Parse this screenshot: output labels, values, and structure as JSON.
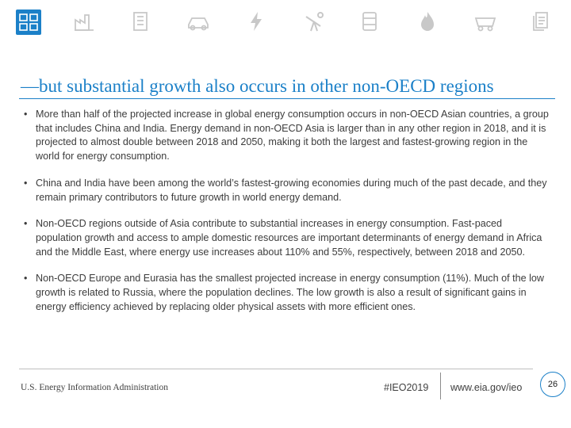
{
  "nav": {
    "icons": [
      "overview-icon",
      "industrial-building-icon",
      "commercial-building-icon",
      "transportation-car-icon",
      "electricity-bolt-icon",
      "petroleum-pump-icon",
      "oil-barrel-icon",
      "natural-gas-flame-icon",
      "coal-cart-icon",
      "documents-icon"
    ]
  },
  "slide": {
    "title": "—but substantial growth also occurs in other non-OECD regions",
    "bullet_marker": "•",
    "bullets": [
      "More than half of the projected increase in global energy consumption occurs in non-OECD Asian countries, a group that includes China and India. Energy demand in non-OECD Asia is larger than in any other region in 2018, and it is projected to almost double between 2018 and 2050, making it both the largest and fastest-growing region in the world for energy consumption.",
      "China and India have been among the world’s fastest-growing economies during much of the past decade, and they remain primary contributors to future growth in world energy demand.",
      "Non-OECD regions outside of Asia contribute to substantial increases in energy consumption. Fast-paced population growth and access to ample domestic resources are important determinants of energy demand in Africa and the Middle East, where energy use increases about 110% and 55%, respectively, between 2018 and 2050.",
      "Non-OECD Europe and Eurasia has the smallest projected increase in energy consumption (11%). Much of the low growth is related to Russia, where the population declines. The low growth is also a result of significant gains in energy efficiency achieved by replacing older physical assets with more efficient ones."
    ]
  },
  "footer": {
    "agency": "U.S. Energy Information Administration",
    "hashtag": "#IEO2019",
    "url": "www.eia.gov/ieo",
    "page_number": "26"
  },
  "colors": {
    "accent": "#1b80c8",
    "icon_gray": "#c8c8c8",
    "text": "#3c3c3c"
  }
}
